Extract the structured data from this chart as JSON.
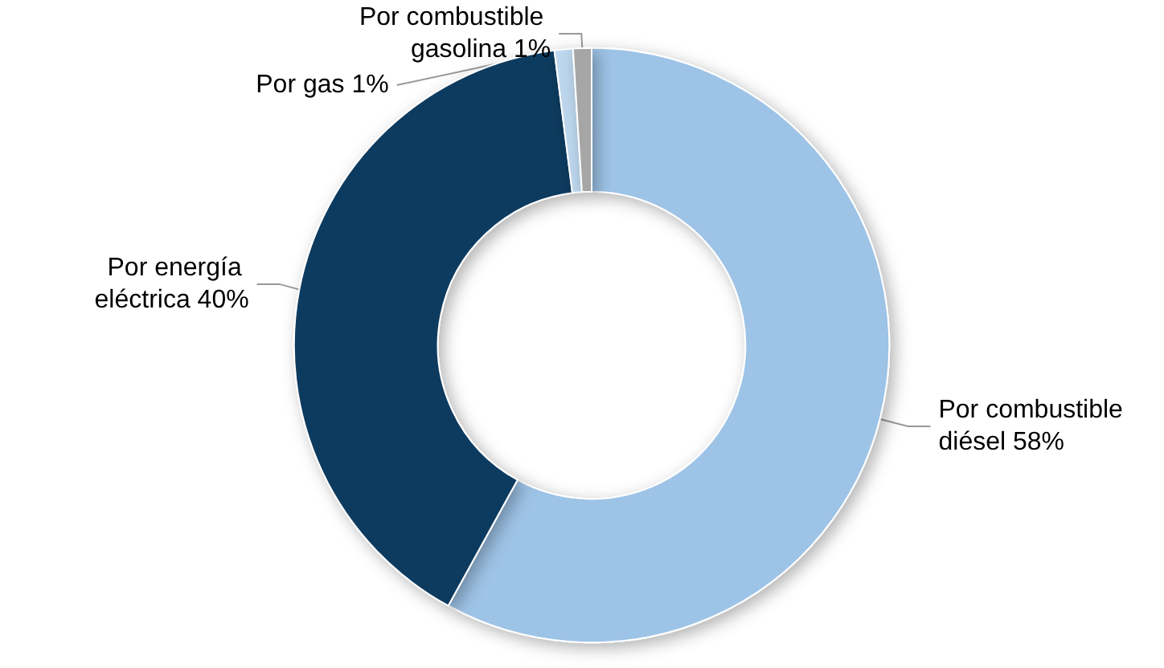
{
  "chart_data": {
    "type": "donut",
    "categories": [
      "Por combustible diésel",
      "Por energía eléctrica",
      "Por gas",
      "Por combustible gasolina"
    ],
    "values": [
      58,
      40,
      1,
      1
    ],
    "value_labels": [
      "58%",
      "40%",
      "1%",
      "1%"
    ],
    "colors": [
      "#9dc3e6",
      "#0f3a5f",
      "#bdd7ee",
      "#a6a6a6"
    ],
    "legend": false
  }
}
